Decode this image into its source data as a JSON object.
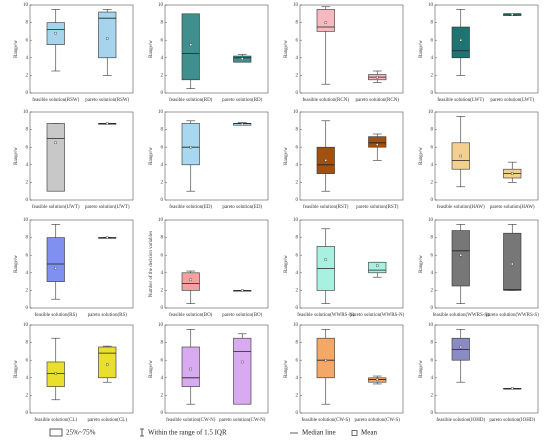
{
  "chart_data": [
    {
      "type": "box",
      "ylabel": "Range/w",
      "categories": [
        "feasible solution(RSW)",
        "pareto solution(RSW)"
      ],
      "color": "#a6d4ec",
      "ylim": [
        0,
        10
      ],
      "yticks": [
        0,
        2,
        4,
        6,
        8,
        10
      ],
      "boxes": [
        {
          "q1": 5.5,
          "median": 7.2,
          "q3": 8,
          "whislo": 2.5,
          "whishi": 9.5,
          "mean": 6.8
        },
        {
          "q1": 4,
          "median": 8.5,
          "q3": 9.2,
          "whislo": 2,
          "whishi": 9.5,
          "mean": 6.2
        }
      ]
    },
    {
      "type": "box",
      "ylabel": "Range/w",
      "categories": [
        "feasible solution(RD)",
        "pareto solution(RD)"
      ],
      "color": "#3f8f8f",
      "ylim": [
        0,
        10
      ],
      "yticks": [
        0,
        2,
        4,
        6,
        8,
        10
      ],
      "boxes": [
        {
          "q1": 1.5,
          "median": 4.5,
          "q3": 9,
          "whislo": 0.5,
          "whishi": 9,
          "mean": 5.5
        },
        {
          "q1": 3.5,
          "median": 4,
          "q3": 4.2,
          "whislo": 3.5,
          "whishi": 4.4,
          "mean": 3.9
        }
      ]
    },
    {
      "type": "box",
      "ylabel": "Range/w",
      "categories": [
        "feasible solution(RCN)",
        "pareto solution(RCN)"
      ],
      "color": "#f7b9c0",
      "ylim": [
        0,
        10
      ],
      "yticks": [
        0,
        2,
        4,
        6,
        8,
        10
      ],
      "boxes": [
        {
          "q1": 7,
          "median": 7.5,
          "q3": 9.5,
          "whislo": 1,
          "whishi": 9.8,
          "mean": 8
        },
        {
          "q1": 1.5,
          "median": 1.8,
          "q3": 2.1,
          "whislo": 1.2,
          "whishi": 2.5,
          "mean": 1.8
        }
      ]
    },
    {
      "type": "box",
      "ylabel": "Range/w",
      "categories": [
        "feasible solution(LWT)",
        "pareto solution(LWT)"
      ],
      "color": "#1e7373",
      "ylim": [
        0,
        10
      ],
      "yticks": [
        0,
        2,
        4,
        6,
        8,
        10
      ],
      "boxes": [
        {
          "q1": 4,
          "median": 4.8,
          "q3": 7.5,
          "whislo": 2,
          "whishi": 9.5,
          "mean": 6
        },
        {
          "q1": 8.8,
          "median": 9,
          "q3": 9,
          "whislo": 8.8,
          "whishi": 9,
          "mean": 8.9
        }
      ]
    },
    {
      "type": "box",
      "ylabel": "Range/w",
      "categories": [
        "feasible solution(UWT)",
        "pareto solution(UWT)"
      ],
      "color": "#c8c8c8",
      "ylim": [
        0,
        10
      ],
      "yticks": [
        0,
        2,
        4,
        6,
        8,
        10
      ],
      "boxes": [
        {
          "q1": 1,
          "median": 7,
          "q3": 8.7,
          "whislo": 1,
          "whishi": 8.7,
          "mean": 6.5
        },
        {
          "q1": 8.7,
          "median": 8.7,
          "q3": 8.7,
          "whislo": 8.7,
          "whishi": 8.7,
          "mean": 8.7
        }
      ]
    },
    {
      "type": "box",
      "ylabel": "Range/w",
      "categories": [
        "feasible solution(ED)",
        "pareto solution(ED)"
      ],
      "color": "#a8d8f0",
      "ylim": [
        0,
        10
      ],
      "yticks": [
        0,
        2,
        4,
        6,
        8,
        10
      ],
      "boxes": [
        {
          "q1": 4,
          "median": 6,
          "q3": 8.7,
          "whislo": 1,
          "whishi": 9,
          "mean": 6
        },
        {
          "q1": 8.5,
          "median": 8.7,
          "q3": 8.7,
          "whislo": 8.5,
          "whishi": 8.8,
          "mean": 8.6
        }
      ]
    },
    {
      "type": "box",
      "ylabel": "Range/w",
      "categories": [
        "feasible solution(RST)",
        "pareto solution(RST)"
      ],
      "color": "#a0500f",
      "ylim": [
        0,
        10
      ],
      "yticks": [
        0,
        2,
        4,
        6,
        8,
        10
      ],
      "boxes": [
        {
          "q1": 3,
          "median": 4,
          "q3": 6,
          "whislo": 1,
          "whishi": 9,
          "mean": 4.5
        },
        {
          "q1": 6,
          "median": 6.5,
          "q3": 7.2,
          "whislo": 4.5,
          "whishi": 7.5,
          "mean": 6.3
        }
      ]
    },
    {
      "type": "box",
      "ylabel": "Range/w",
      "categories": [
        "feasible solution(HAW)",
        "pareto solution(HAW)"
      ],
      "color": "#f3d08f",
      "ylim": [
        0,
        10
      ],
      "yticks": [
        0,
        2,
        4,
        6,
        8,
        10
      ],
      "boxes": [
        {
          "q1": 3.5,
          "median": 4.5,
          "q3": 6.5,
          "whislo": 1.5,
          "whishi": 9.5,
          "mean": 5
        },
        {
          "q1": 2.5,
          "median": 3,
          "q3": 3.5,
          "whislo": 2,
          "whishi": 4.3,
          "mean": 3
        }
      ]
    },
    {
      "type": "box",
      "ylabel": "Range/w",
      "categories": [
        "feasible solution(RS)",
        "pareto solution(RS)"
      ],
      "color": "#8090f0",
      "ylim": [
        0,
        10
      ],
      "yticks": [
        0,
        2,
        4,
        6,
        8,
        10
      ],
      "boxes": [
        {
          "q1": 3,
          "median": 5,
          "q3": 8,
          "whislo": 1,
          "whishi": 9.5,
          "mean": 4.5
        },
        {
          "q1": 8,
          "median": 8,
          "q3": 8,
          "whislo": 8,
          "whishi": 8,
          "mean": 8
        }
      ]
    },
    {
      "type": "box",
      "ylabel": "Number of the decision variables",
      "categories": [
        "feasible solution(BO)",
        "pareto solution(BO)"
      ],
      "color": "#f4a0a0",
      "ylim": [
        0,
        10
      ],
      "yticks": [
        0,
        2,
        4,
        6,
        8,
        10
      ],
      "boxes": [
        {
          "q1": 2,
          "median": 2.8,
          "q3": 4,
          "whislo": 0.5,
          "whishi": 4.2,
          "mean": 3.2
        },
        {
          "q1": 2,
          "median": 2,
          "q3": 2,
          "whislo": 2,
          "whishi": 2,
          "mean": 2
        }
      ]
    },
    {
      "type": "box",
      "ylabel": "Range/w",
      "categories": [
        "feasible solution(WWRS-N)",
        "pareto solution(WWRS-N)"
      ],
      "color": "#a8f0e0",
      "ylim": [
        0,
        10
      ],
      "yticks": [
        0,
        2,
        4,
        6,
        8,
        10
      ],
      "boxes": [
        {
          "q1": 2,
          "median": 4.5,
          "q3": 7,
          "whislo": 0.5,
          "whishi": 9,
          "mean": 5.5
        },
        {
          "q1": 4,
          "median": 4.3,
          "q3": 5.2,
          "whislo": 3.5,
          "whishi": 5.2,
          "mean": 4.8
        }
      ]
    },
    {
      "type": "box",
      "ylabel": "Range/w",
      "categories": [
        "feasible solution(WWRS-S)",
        "pareto solution(WWRS-S)"
      ],
      "color": "#777777",
      "ylim": [
        0,
        10
      ],
      "yticks": [
        0,
        2,
        4,
        6,
        8,
        10
      ],
      "boxes": [
        {
          "q1": 2.5,
          "median": 6.5,
          "q3": 8.8,
          "whislo": 0.5,
          "whishi": 9.5,
          "mean": 6
        },
        {
          "q1": 2,
          "median": 2.1,
          "q3": 8.5,
          "whislo": 2,
          "whishi": 9.5,
          "mean": 5
        }
      ]
    },
    {
      "type": "box",
      "ylabel": "Range/w",
      "categories": [
        "feasible solution(CL)",
        "pareto solution(CL)"
      ],
      "color": "#e8e02a",
      "ylim": [
        0,
        10
      ],
      "yticks": [
        0,
        2,
        4,
        6,
        8,
        10
      ],
      "boxes": [
        {
          "q1": 3,
          "median": 4.5,
          "q3": 5.8,
          "whislo": 1.5,
          "whishi": 8.5,
          "mean": 4.5
        },
        {
          "q1": 4,
          "median": 6.8,
          "q3": 7.5,
          "whislo": 3.5,
          "whishi": 7.6,
          "mean": 5.5
        }
      ]
    },
    {
      "type": "box",
      "ylabel": "Range/w",
      "categories": [
        "feasible solution(CW-N)",
        "pareto solution(CW-N)"
      ],
      "color": "#d8aaf0",
      "ylim": [
        0,
        10
      ],
      "yticks": [
        0,
        2,
        4,
        6,
        8,
        10
      ],
      "boxes": [
        {
          "q1": 3,
          "median": 4,
          "q3": 7.5,
          "whislo": 1,
          "whishi": 9.5,
          "mean": 5
        },
        {
          "q1": 1,
          "median": 7,
          "q3": 8.5,
          "whislo": 1,
          "whishi": 9,
          "mean": 5.8
        }
      ]
    },
    {
      "type": "box",
      "ylabel": "Range/w",
      "categories": [
        "feasible solution(CW-S)",
        "pareto solution(CW-S)"
      ],
      "color": "#f4a868",
      "ylim": [
        0,
        10
      ],
      "yticks": [
        0,
        2,
        4,
        6,
        8,
        10
      ],
      "boxes": [
        {
          "q1": 4,
          "median": 6,
          "q3": 8.5,
          "whislo": 1,
          "whishi": 9.5,
          "mean": 6
        },
        {
          "q1": 3.5,
          "median": 3.8,
          "q3": 4,
          "whislo": 3.3,
          "whishi": 4.2,
          "mean": 3.8
        }
      ]
    },
    {
      "type": "box",
      "ylabel": "Range/w",
      "categories": [
        "feasible solution(IOHD)",
        "pareto solution(IOHD)"
      ],
      "color": "#8b8bc4",
      "ylim": [
        0,
        10
      ],
      "yticks": [
        0,
        2,
        4,
        6,
        8,
        10
      ],
      "boxes": [
        {
          "q1": 6,
          "median": 7.2,
          "q3": 8.5,
          "whislo": 3.5,
          "whishi": 9.5,
          "mean": 7.5
        },
        {
          "q1": 2.8,
          "median": 2.8,
          "q3": 2.8,
          "whislo": 2.8,
          "whishi": 2.8,
          "mean": 2.8
        }
      ]
    }
  ],
  "legend": {
    "box": "25%~75%",
    "whisker": "Within the range of 1.5 IQR",
    "median": "Median line",
    "mean": "Mean"
  }
}
